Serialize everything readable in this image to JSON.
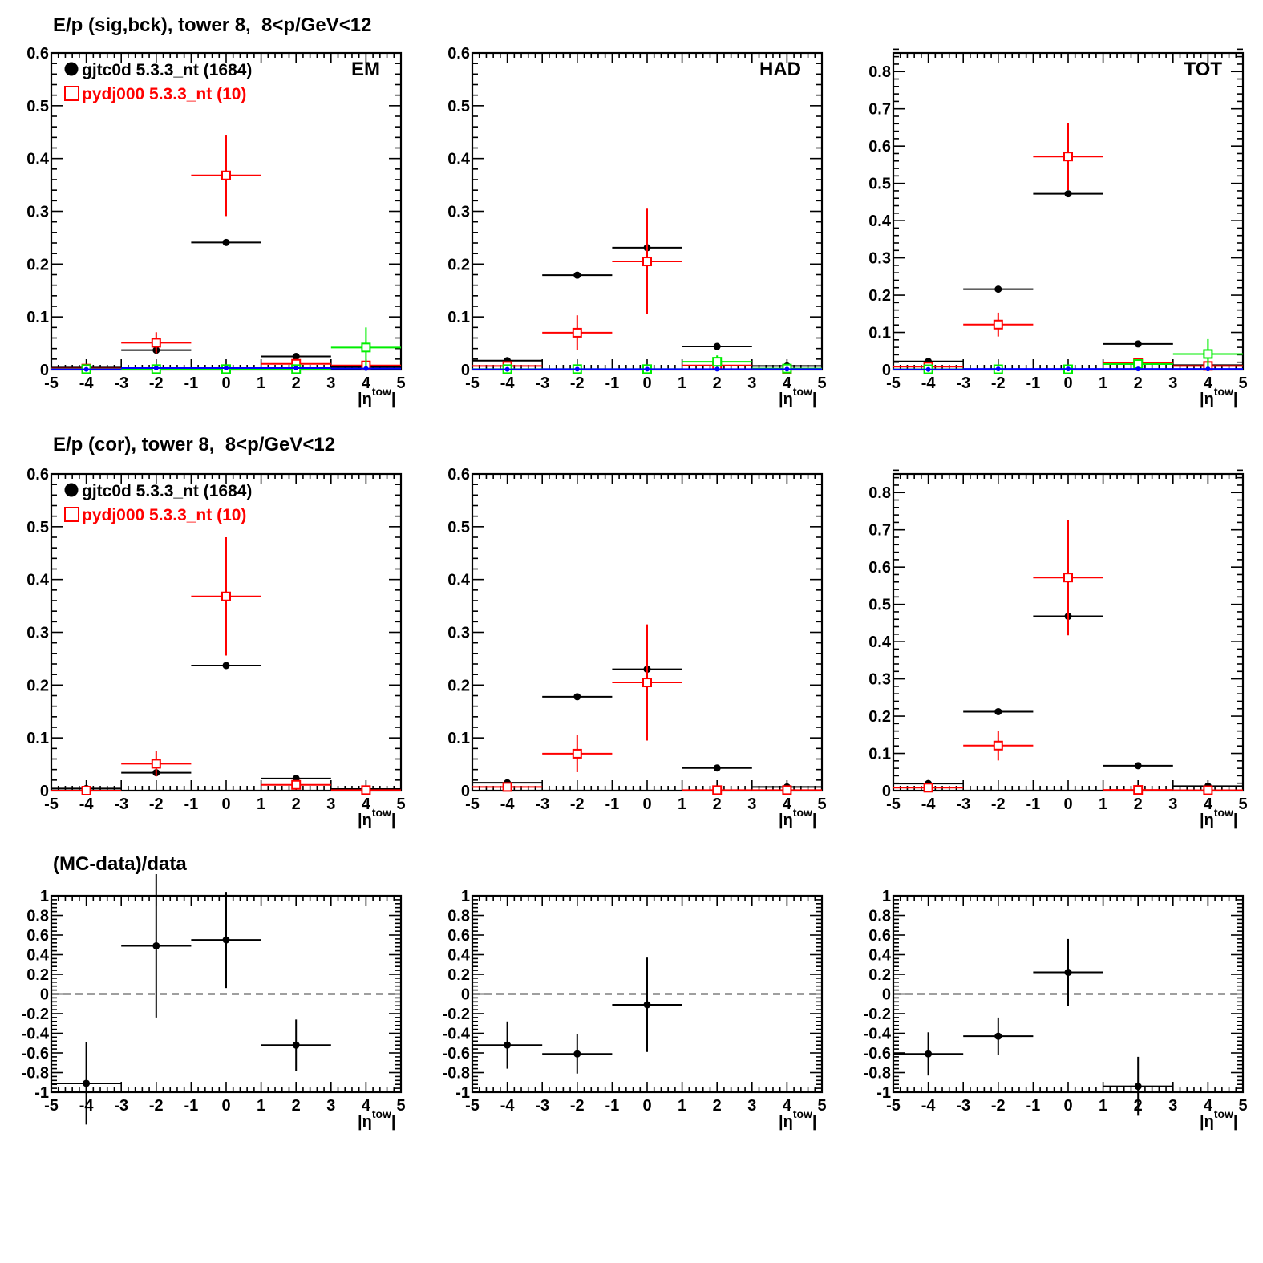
{
  "row_titles": [
    "E/p (sig,bck), tower 8,  8<p/GeV<12",
    "E/p (cor), tower 8,  8<p/GeV<12",
    "(MC-data)/data"
  ],
  "legend": {
    "data_label": "gjtc0d 5.3.3_nt (1684)",
    "mc_label": "pydj000 5.3.3_nt (10)"
  },
  "x_axis_label": "|η",
  "x_axis_superscript": "tow",
  "x_axis_end": "|",
  "colors": {
    "data": "#000000",
    "mc": "#ff0000",
    "green": "#00ee00",
    "blue": "#0000ff",
    "dashed": "#000000"
  },
  "chart_data": [
    {
      "type": "scatter",
      "row": 0,
      "col": 0,
      "label": "EM",
      "xlim": [
        -5,
        5
      ],
      "ylim": [
        0,
        0.6
      ],
      "xticks": [
        "-5",
        "-4",
        "-3",
        "-2",
        "-1",
        "0",
        "1",
        "2",
        "3",
        "4",
        "5"
      ],
      "yticks": [
        "0",
        "0.1",
        "0.2",
        "0.3",
        "0.4",
        "0.5",
        "0.6"
      ],
      "series": [
        {
          "name": "gjtc0d 5.3.3_nt (1684)",
          "style": "black-dot",
          "points": [
            [
              -4,
              0.004,
              0.007
            ],
            [
              -2,
              0.037,
              0.003
            ],
            [
              0,
              0.241,
              0.003
            ],
            [
              2,
              0.025,
              0.003
            ],
            [
              4,
              0.005,
              0.001
            ]
          ]
        },
        {
          "name": "pydj000 5.3.3_nt (10)",
          "style": "red-square",
          "points": [
            [
              -4,
              0.002,
              0.003
            ],
            [
              -2,
              0.051,
              0.02
            ],
            [
              0,
              0.368,
              0.077
            ],
            [
              2,
              0.011,
              0.008
            ],
            [
              4,
              0.008,
              0.005
            ]
          ]
        },
        {
          "style": "green-square",
          "points": [
            [
              -4,
              0.001,
              0.001
            ],
            [
              -2,
              0.001,
              0.001
            ],
            [
              0,
              0.001,
              0.001
            ],
            [
              2,
              0.001,
              0.001
            ],
            [
              4,
              0.042,
              0.038
            ]
          ]
        },
        {
          "style": "blue-dot",
          "points": [
            [
              -4,
              0.0005,
              0
            ],
            [
              -2,
              0.003,
              0
            ],
            [
              0,
              0.003,
              0
            ],
            [
              2,
              0.003,
              0
            ],
            [
              4,
              0.002,
              0
            ]
          ]
        }
      ]
    },
    {
      "type": "scatter",
      "row": 0,
      "col": 1,
      "label": "HAD",
      "xlim": [
        -5,
        5
      ],
      "ylim": [
        0,
        0.6
      ],
      "xticks": [
        "-5",
        "-4",
        "-3",
        "-2",
        "-1",
        "0",
        "1",
        "2",
        "3",
        "4",
        "5"
      ],
      "yticks": [
        "0",
        "0.1",
        "0.2",
        "0.3",
        "0.4",
        "0.5",
        "0.6"
      ],
      "series": [
        {
          "name": "gjtc0d 5.3.3_nt (1684)",
          "style": "black-dot",
          "points": [
            [
              -4,
              0.017,
              0.003
            ],
            [
              -2,
              0.179,
              0.003
            ],
            [
              0,
              0.231,
              0.004
            ],
            [
              2,
              0.044,
              0.002
            ],
            [
              4,
              0.007,
              0.001
            ]
          ]
        },
        {
          "name": "pydj000 5.3.3_nt (10)",
          "style": "red-square",
          "points": [
            [
              -4,
              0.007,
              0.005
            ],
            [
              -2,
              0.07,
              0.033
            ],
            [
              0,
              0.205,
              0.1
            ],
            [
              2,
              0.008,
              0.007
            ],
            [
              4,
              0.001,
              0.001
            ]
          ]
        },
        {
          "style": "green-square",
          "points": [
            [
              -4,
              0.001,
              0.001
            ],
            [
              -2,
              0.001,
              0.001
            ],
            [
              0,
              0.001,
              0.001
            ],
            [
              2,
              0.015,
              0.012
            ],
            [
              4,
              0.002,
              0.002
            ]
          ]
        },
        {
          "style": "blue-dot",
          "points": [
            [
              -4,
              0.0005,
              0
            ],
            [
              -2,
              0.001,
              0
            ],
            [
              0,
              0.001,
              0
            ],
            [
              2,
              0.001,
              0
            ],
            [
              4,
              0.001,
              0
            ]
          ]
        }
      ]
    },
    {
      "type": "scatter",
      "row": 0,
      "col": 2,
      "label": "TOT",
      "xlim": [
        -5,
        5
      ],
      "ylim": [
        0,
        0.85
      ],
      "xticks": [
        "-5",
        "-4",
        "-3",
        "-2",
        "-1",
        "0",
        "1",
        "2",
        "3",
        "4",
        "5"
      ],
      "yticks": [
        "0",
        "0.1",
        "0.2",
        "0.3",
        "0.4",
        "0.5",
        "0.6",
        "0.7",
        "0.8"
      ],
      "series": [
        {
          "name": "gjtc0d 5.3.3_nt (1684)",
          "style": "black-dot",
          "points": [
            [
              -4,
              0.022,
              0.003
            ],
            [
              -2,
              0.216,
              0.003
            ],
            [
              0,
              0.472,
              0.004
            ],
            [
              2,
              0.069,
              0.003
            ],
            [
              4,
              0.012,
              0.001
            ]
          ]
        },
        {
          "name": "pydj000 5.3.3_nt (10)",
          "style": "red-square",
          "points": [
            [
              -4,
              0.008,
              0.006
            ],
            [
              -2,
              0.121,
              0.032
            ],
            [
              0,
              0.572,
              0.09
            ],
            [
              2,
              0.019,
              0.01
            ],
            [
              4,
              0.01,
              0.005
            ]
          ]
        },
        {
          "style": "green-square",
          "points": [
            [
              -4,
              0.001,
              0.001
            ],
            [
              -2,
              0.001,
              0.001
            ],
            [
              0,
              0.001,
              0.001
            ],
            [
              2,
              0.015,
              0.01
            ],
            [
              4,
              0.042,
              0.04
            ]
          ]
        },
        {
          "style": "blue-dot",
          "points": [
            [
              -4,
              0.0005,
              0
            ],
            [
              -2,
              0.002,
              0
            ],
            [
              0,
              0.002,
              0
            ],
            [
              2,
              0.002,
              0
            ],
            [
              4,
              0.002,
              0
            ]
          ]
        }
      ]
    },
    {
      "type": "scatter",
      "row": 1,
      "col": 0,
      "xlim": [
        -5,
        5
      ],
      "ylim": [
        0,
        0.6
      ],
      "xticks": [
        "-5",
        "-4",
        "-3",
        "-2",
        "-1",
        "0",
        "1",
        "2",
        "3",
        "4",
        "5"
      ],
      "yticks": [
        "0",
        "0.1",
        "0.2",
        "0.3",
        "0.4",
        "0.5",
        "0.6"
      ],
      "series": [
        {
          "name": "gjtc0d 5.3.3_nt (1684)",
          "style": "black-dot",
          "points": [
            [
              -4,
              0.004,
              0.002
            ],
            [
              -2,
              0.034,
              0.002
            ],
            [
              0,
              0.237,
              0.003
            ],
            [
              2,
              0.023,
              0.002
            ],
            [
              4,
              0.003,
              0.001
            ]
          ]
        },
        {
          "name": "pydj000 5.3.3_nt (10)",
          "style": "red-square",
          "points": [
            [
              -4,
              0.0,
              0.002
            ],
            [
              -2,
              0.051,
              0.024
            ],
            [
              0,
              0.368,
              0.112
            ],
            [
              2,
              0.011,
              0.008
            ],
            [
              4,
              0.001,
              0.001
            ]
          ]
        }
      ]
    },
    {
      "type": "scatter",
      "row": 1,
      "col": 1,
      "xlim": [
        -5,
        5
      ],
      "ylim": [
        0,
        0.6
      ],
      "xticks": [
        "-5",
        "-4",
        "-3",
        "-2",
        "-1",
        "0",
        "1",
        "2",
        "3",
        "4",
        "5"
      ],
      "yticks": [
        "0",
        "0.1",
        "0.2",
        "0.3",
        "0.4",
        "0.5",
        "0.6"
      ],
      "series": [
        {
          "name": "gjtc0d 5.3.3_nt (1684)",
          "style": "black-dot",
          "points": [
            [
              -4,
              0.015,
              0.002
            ],
            [
              -2,
              0.178,
              0.003
            ],
            [
              0,
              0.23,
              0.004
            ],
            [
              2,
              0.043,
              0.002
            ],
            [
              4,
              0.007,
              0.001
            ]
          ]
        },
        {
          "name": "pydj000 5.3.3_nt (10)",
          "style": "red-square",
          "points": [
            [
              -4,
              0.007,
              0.005
            ],
            [
              -2,
              0.07,
              0.035
            ],
            [
              0,
              0.205,
              0.11
            ],
            [
              2,
              0.001,
              0.001
            ],
            [
              4,
              0.001,
              0.001
            ]
          ]
        }
      ]
    },
    {
      "type": "scatter",
      "row": 1,
      "col": 2,
      "xlim": [
        -5,
        5
      ],
      "ylim": [
        0,
        0.85
      ],
      "xticks": [
        "-5",
        "-4",
        "-3",
        "-2",
        "-1",
        "0",
        "1",
        "2",
        "3",
        "4",
        "5"
      ],
      "yticks": [
        "0",
        "0.1",
        "0.2",
        "0.3",
        "0.4",
        "0.5",
        "0.6",
        "0.7",
        "0.8"
      ],
      "series": [
        {
          "name": "gjtc0d 5.3.3_nt (1684)",
          "style": "black-dot",
          "points": [
            [
              -4,
              0.019,
              0.003
            ],
            [
              -2,
              0.212,
              0.003
            ],
            [
              0,
              0.468,
              0.05
            ],
            [
              2,
              0.067,
              0.003
            ],
            [
              4,
              0.012,
              0.001
            ]
          ]
        },
        {
          "name": "pydj000 5.3.3_nt (10)",
          "style": "red-square",
          "points": [
            [
              -4,
              0.008,
              0.006
            ],
            [
              -2,
              0.121,
              0.04
            ],
            [
              0,
              0.572,
              0.155
            ],
            [
              2,
              0.002,
              0.002
            ],
            [
              4,
              0.001,
              0.001
            ]
          ]
        }
      ]
    },
    {
      "type": "scatter",
      "row": 2,
      "col": 0,
      "xlim": [
        -5,
        5
      ],
      "ylim": [
        -1,
        1
      ],
      "xticks": [
        "-5",
        "-4",
        "-3",
        "-2",
        "-1",
        "0",
        "1",
        "2",
        "3",
        "4",
        "5"
      ],
      "yticks": [
        "-1",
        "-0.8",
        "-0.6",
        "-0.4",
        "-0.2",
        "0",
        "0.2",
        "0.4",
        "0.6",
        "0.8",
        "1"
      ],
      "reference_line": 0,
      "series": [
        {
          "style": "black-dot",
          "points": [
            [
              -4,
              -0.91,
              0.42
            ],
            [
              -2,
              0.49,
              0.73
            ],
            [
              0,
              0.55,
              0.49
            ],
            [
              2,
              -0.52,
              0.26
            ]
          ]
        }
      ]
    },
    {
      "type": "scatter",
      "row": 2,
      "col": 1,
      "xlim": [
        -5,
        5
      ],
      "ylim": [
        -1,
        1
      ],
      "xticks": [
        "-5",
        "-4",
        "-3",
        "-2",
        "-1",
        "0",
        "1",
        "2",
        "3",
        "4",
        "5"
      ],
      "yticks": [
        "-1",
        "-0.8",
        "-0.6",
        "-0.4",
        "-0.2",
        "0",
        "0.2",
        "0.4",
        "0.6",
        "0.8",
        "1"
      ],
      "reference_line": 0,
      "series": [
        {
          "style": "black-dot",
          "points": [
            [
              -4,
              -0.52,
              0.24
            ],
            [
              -2,
              -0.61,
              0.2
            ],
            [
              0,
              -0.11,
              0.48
            ]
          ]
        }
      ]
    },
    {
      "type": "scatter",
      "row": 2,
      "col": 2,
      "xlim": [
        -5,
        5
      ],
      "ylim": [
        -1,
        1
      ],
      "xticks": [
        "-5",
        "-4",
        "-3",
        "-2",
        "-1",
        "0",
        "1",
        "2",
        "3",
        "4",
        "5"
      ],
      "yticks": [
        "-1",
        "-0.8",
        "-0.6",
        "-0.4",
        "-0.2",
        "0",
        "0.2",
        "0.4",
        "0.6",
        "0.8",
        "1"
      ],
      "reference_line": 0,
      "series": [
        {
          "style": "black-dot",
          "points": [
            [
              -4,
              -0.61,
              0.22
            ],
            [
              -2,
              -0.43,
              0.19
            ],
            [
              0,
              0.22,
              0.34
            ],
            [
              2,
              -0.94,
              0.3
            ]
          ]
        }
      ]
    }
  ]
}
